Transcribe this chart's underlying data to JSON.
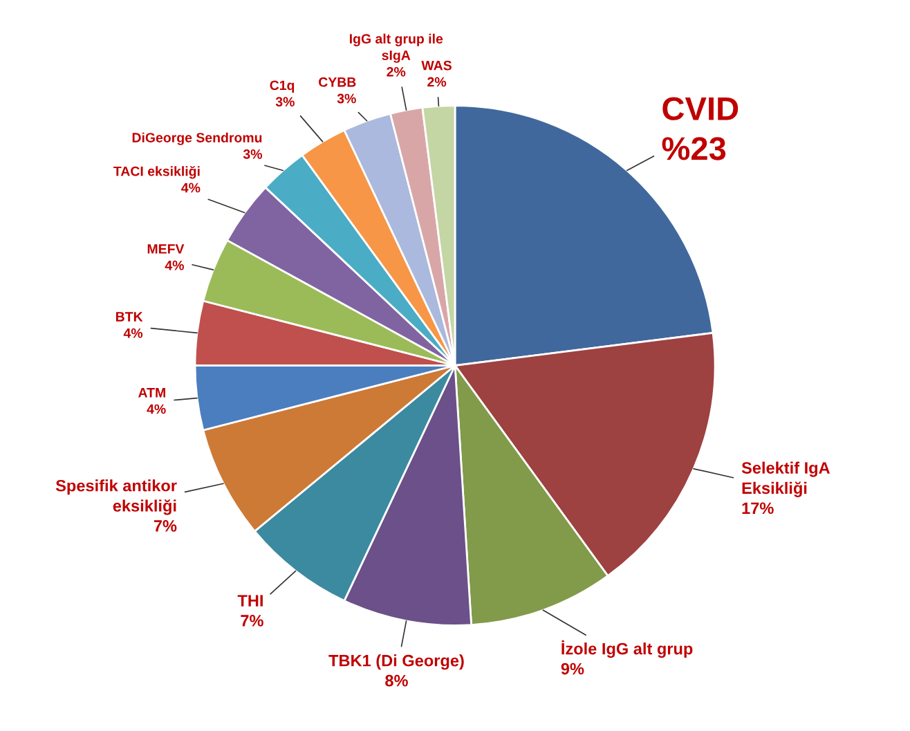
{
  "chart_data": {
    "type": "pie",
    "categories": [
      "CVID",
      "Selektif IgA Eksikliği",
      "İzole IgG alt grup",
      "TBK1 (Di George)",
      "THI",
      "Spesifik antikor eksikliği",
      "ATM",
      "BTK",
      "MEFV",
      "TACI eksikliği",
      "DiGeorge Sendromu",
      "C1q",
      "CYBB",
      "IgG alt grup ile sIgA",
      "WAS"
    ],
    "values": [
      23,
      17,
      9,
      8,
      7,
      7,
      4,
      4,
      4,
      4,
      3,
      3,
      3,
      2,
      2
    ],
    "value_labels": [
      "%23",
      "17%",
      "9%",
      "8%",
      "7%",
      "7%",
      "4%",
      "4%",
      "4%",
      "4%",
      "3%",
      "3%",
      "3%",
      "2%",
      "2%"
    ],
    "colors": [
      "#41689c",
      "#9e4141",
      "#819b4a",
      "#6b5089",
      "#3c8aa0",
      "#cd7a36",
      "#4a7ebf",
      "#c0504d",
      "#9bbb59",
      "#8064a2",
      "#4bacc6",
      "#f79646",
      "#aab9dd",
      "#d9a6a8",
      "#c4d6a4"
    ],
    "legend": false
  }
}
